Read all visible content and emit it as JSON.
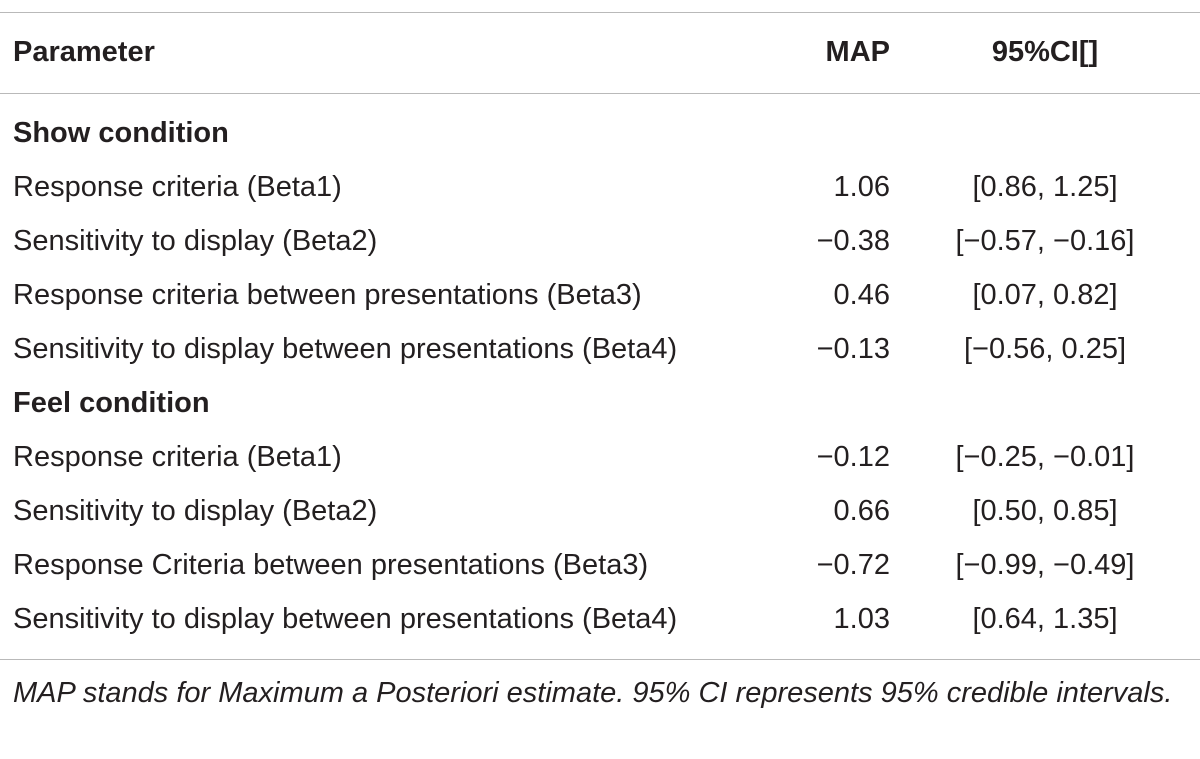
{
  "table": {
    "headers": {
      "parameter": "Parameter",
      "map": "MAP",
      "ci": "95%CI[]"
    },
    "sections": [
      {
        "title": "Show condition",
        "rows": [
          {
            "parameter": "Response criteria (Beta1)",
            "map": "1.06",
            "ci": "[0.86, 1.25]"
          },
          {
            "parameter": "Sensitivity to display (Beta2)",
            "map": "−0.38",
            "ci": "[−0.57, −0.16]"
          },
          {
            "parameter": "Response criteria between presentations (Beta3)",
            "map": "0.46",
            "ci": "[0.07, 0.82]"
          },
          {
            "parameter": "Sensitivity to display between presentations (Beta4)",
            "map": "−0.13",
            "ci": "[−0.56, 0.25]"
          }
        ]
      },
      {
        "title": "Feel condition",
        "rows": [
          {
            "parameter": "Response criteria (Beta1)",
            "map": "−0.12",
            "ci": "[−0.25, −0.01]"
          },
          {
            "parameter": "Sensitivity to display (Beta2)",
            "map": "0.66",
            "ci": "[0.50, 0.85]"
          },
          {
            "parameter": "Response Criteria between presentations (Beta3)",
            "map": "−0.72",
            "ci": "[−0.99, −0.49]"
          },
          {
            "parameter": "Sensitivity to display between presentations (Beta4)",
            "map": "1.03",
            "ci": "[0.64, 1.35]"
          }
        ]
      }
    ],
    "footnote": "MAP stands for Maximum a Posteriori estimate. 95% CI represents 95% credible intervals."
  }
}
